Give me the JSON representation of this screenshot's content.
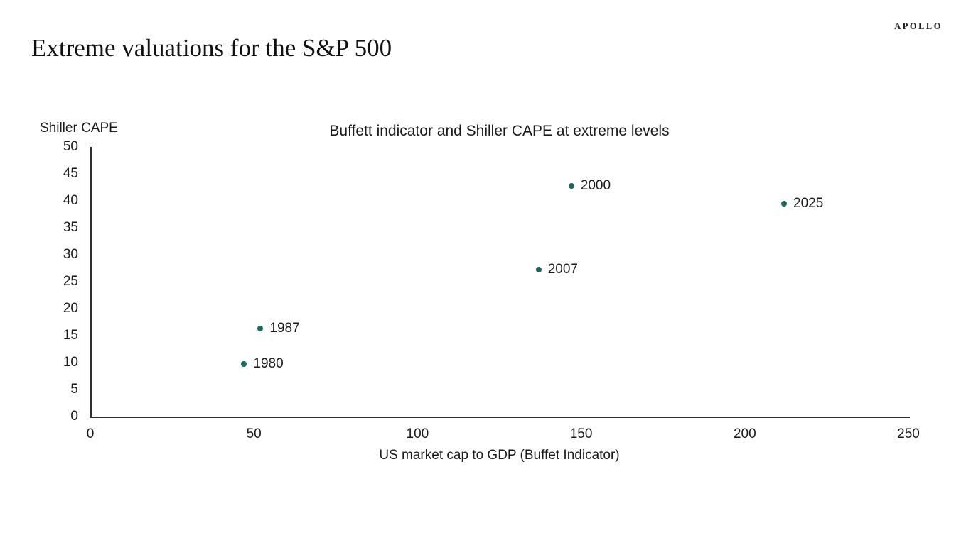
{
  "page": {
    "logo": "APOLLO",
    "title": "Extreme valuations for the S&P 500"
  },
  "chart_data": {
    "type": "scatter",
    "title": "Buffett indicator and Shiller CAPE at extreme levels",
    "xlabel": "US market cap to GDP (Buffet Indicator)",
    "ylabel": "Shiller CAPE",
    "xlim": [
      0,
      250
    ],
    "ylim": [
      0,
      50
    ],
    "x_ticks": [
      0,
      50,
      100,
      150,
      200,
      250
    ],
    "y_ticks": [
      0,
      5,
      10,
      15,
      20,
      25,
      30,
      35,
      40,
      45,
      50
    ],
    "grid": false,
    "legend": false,
    "point_color": "#16695C",
    "points": [
      {
        "label": "1980",
        "x": 47,
        "y": 9.7
      },
      {
        "label": "1987",
        "x": 52,
        "y": 16.3
      },
      {
        "label": "2007",
        "x": 137,
        "y": 27.2
      },
      {
        "label": "2000",
        "x": 147,
        "y": 42.8
      },
      {
        "label": "2025",
        "x": 212,
        "y": 39.5
      }
    ]
  }
}
